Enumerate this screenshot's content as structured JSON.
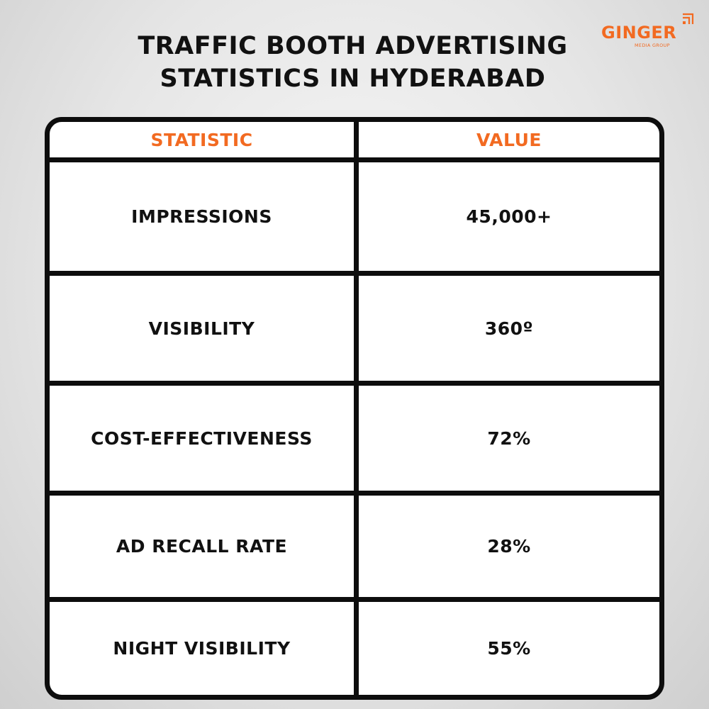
{
  "title": {
    "line1": "TRAFFIC BOOTH ADVERTISING",
    "line2": "STATISTICS IN HYDERABAD"
  },
  "logo": {
    "name": "GINGER",
    "tagline": "MEDIA GROUP",
    "color": "#f26a21"
  },
  "table": {
    "headers": {
      "statistic": "STATISTIC",
      "value": "VALUE"
    },
    "rows": [
      {
        "statistic": "IMPRESSIONS",
        "value": "45,000+"
      },
      {
        "statistic": "VISIBILITY",
        "value": "360º"
      },
      {
        "statistic": "COST-EFFECTIVENESS",
        "value": "72%"
      },
      {
        "statistic": "AD RECALL RATE",
        "value": "28%"
      },
      {
        "statistic": "NIGHT VISIBILITY",
        "value": "55%"
      }
    ]
  },
  "colors": {
    "accent": "#f26a21",
    "border": "#0d0d0d",
    "text": "#111111"
  }
}
